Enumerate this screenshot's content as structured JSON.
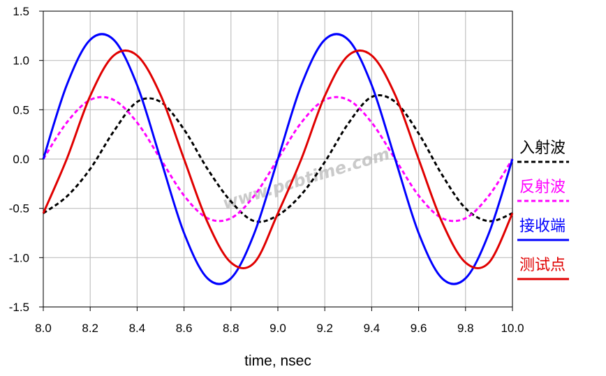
{
  "chart_data": {
    "type": "line",
    "title": "",
    "xlabel": "time, nsec",
    "ylabel": "",
    "xlim": [
      8.0,
      10.0
    ],
    "ylim": [
      -1.5,
      1.5
    ],
    "x_ticks": [
      "8.0",
      "8.2",
      "8.4",
      "8.6",
      "8.8",
      "9.0",
      "9.2",
      "9.4",
      "9.6",
      "9.8",
      "10.0"
    ],
    "y_ticks": [
      "-1.5",
      "-1.0",
      "-0.5",
      "0.0",
      "0.5",
      "1.0",
      "1.5"
    ],
    "grid": true,
    "legend_position": "right",
    "watermark": "www.pcbtime.com",
    "series": [
      {
        "name": "入射波",
        "color": "#000000",
        "dashed": true,
        "x": [
          8.0,
          8.1,
          8.2,
          8.3,
          8.4,
          8.5,
          8.6,
          8.7,
          8.8,
          8.9,
          9.0,
          9.1,
          9.2,
          9.3,
          9.4,
          9.5,
          9.6,
          9.7,
          9.8,
          9.9,
          10.0
        ],
        "y": [
          -0.55,
          -0.38,
          -0.1,
          0.28,
          0.58,
          0.58,
          0.3,
          -0.1,
          -0.43,
          -0.63,
          -0.57,
          -0.36,
          -0.03,
          0.36,
          0.63,
          0.58,
          0.26,
          -0.16,
          -0.5,
          -0.63,
          -0.55
        ]
      },
      {
        "name": "反射波",
        "color": "#ff00ff",
        "dashed": true,
        "x": [
          8.0,
          8.1,
          8.2,
          8.3,
          8.4,
          8.5,
          8.6,
          8.7,
          8.8,
          8.9,
          9.0,
          9.1,
          9.2,
          9.3,
          9.4,
          9.5,
          9.6,
          9.7,
          9.8,
          9.9,
          10.0
        ],
        "y": [
          0.0,
          0.37,
          0.6,
          0.6,
          0.37,
          0.0,
          -0.37,
          -0.6,
          -0.6,
          -0.37,
          0.0,
          0.37,
          0.6,
          0.6,
          0.37,
          0.0,
          -0.37,
          -0.6,
          -0.6,
          -0.37,
          0.0
        ]
      },
      {
        "name": "接收端",
        "color": "#0000ff",
        "dashed": false,
        "x": [
          8.0,
          8.1,
          8.2,
          8.3,
          8.4,
          8.5,
          8.6,
          8.7,
          8.8,
          8.9,
          9.0,
          9.1,
          9.2,
          9.3,
          9.4,
          9.5,
          9.6,
          9.7,
          9.8,
          9.9,
          10.0
        ],
        "y": [
          0.0,
          0.75,
          1.21,
          1.21,
          0.75,
          0.0,
          -0.75,
          -1.21,
          -1.21,
          -0.75,
          0.0,
          0.75,
          1.21,
          1.21,
          0.75,
          0.0,
          -0.75,
          -1.21,
          -1.21,
          -0.75,
          0.0
        ]
      },
      {
        "name": "测试点",
        "color": "#e00000",
        "dashed": false,
        "x": [
          8.0,
          8.1,
          8.2,
          8.3,
          8.4,
          8.5,
          8.6,
          8.7,
          8.8,
          8.9,
          9.0,
          9.1,
          9.2,
          9.3,
          9.4,
          9.5,
          9.6,
          9.7,
          9.8,
          9.9,
          10.0
        ],
        "y": [
          -0.55,
          0.0,
          0.64,
          1.05,
          1.05,
          0.65,
          0.0,
          -0.64,
          -1.05,
          -1.05,
          -0.55,
          0.0,
          0.64,
          1.05,
          1.05,
          0.65,
          0.0,
          -0.64,
          -1.05,
          -1.05,
          -0.55
        ]
      }
    ]
  }
}
